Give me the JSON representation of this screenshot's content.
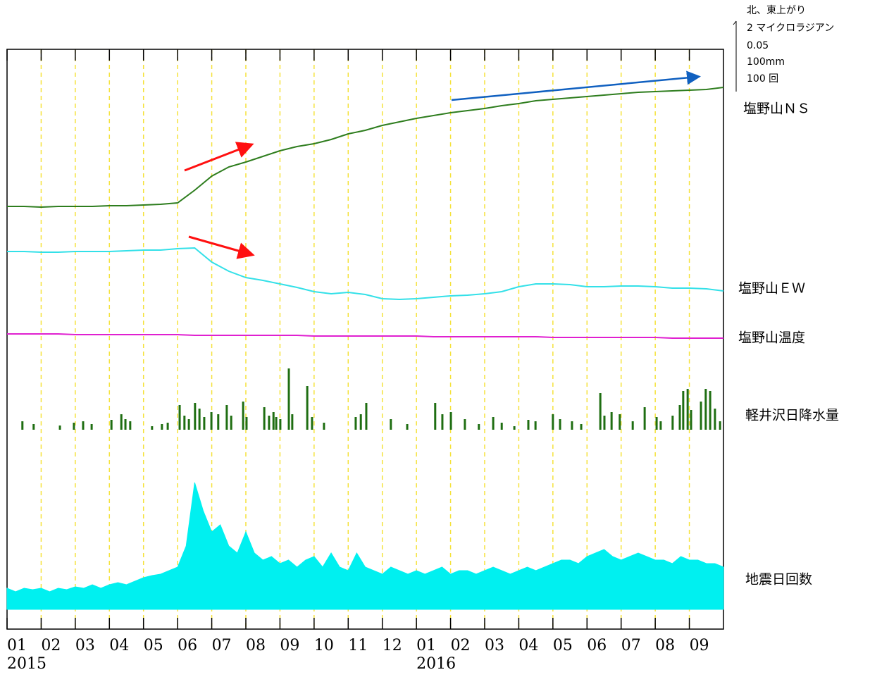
{
  "chart_data": {
    "type": "line",
    "xlim": [
      0,
      21
    ],
    "xticks": [
      {
        "value": 0,
        "label": "01"
      },
      {
        "value": 1,
        "label": "02"
      },
      {
        "value": 2,
        "label": "03"
      },
      {
        "value": 3,
        "label": "04"
      },
      {
        "value": 4,
        "label": "05"
      },
      {
        "value": 5,
        "label": "06"
      },
      {
        "value": 6,
        "label": "07"
      },
      {
        "value": 7,
        "label": "08"
      },
      {
        "value": 8,
        "label": "09"
      },
      {
        "value": 9,
        "label": "10"
      },
      {
        "value": 10,
        "label": "11"
      },
      {
        "value": 11,
        "label": "12"
      },
      {
        "value": 12,
        "label": "01"
      },
      {
        "value": 13,
        "label": "02"
      },
      {
        "value": 14,
        "label": "03"
      },
      {
        "value": 15,
        "label": "04"
      },
      {
        "value": 16,
        "label": "05"
      },
      {
        "value": 17,
        "label": "06"
      },
      {
        "value": 18,
        "label": "07"
      },
      {
        "value": 19,
        "label": "08"
      },
      {
        "value": 20,
        "label": "09"
      }
    ],
    "year_labels": [
      {
        "value": 0,
        "label": "2015"
      },
      {
        "value": 12,
        "label": "2016"
      }
    ],
    "grid": true,
    "scale": {
      "note": "北、東上がり",
      "items": [
        {
          "value": 2,
          "label": "2 マイクロラジアン"
        },
        {
          "value": 0.05,
          "label": "0.05"
        },
        {
          "value": 100,
          "label": "100mm"
        },
        {
          "value": 100,
          "label": "100 回"
        }
      ]
    },
    "x": [
      0,
      0.5,
      1,
      1.5,
      2,
      2.5,
      3,
      3.5,
      4,
      4.5,
      5,
      5.5,
      6,
      6.5,
      7,
      7.5,
      8,
      8.5,
      9,
      9.5,
      10,
      10.5,
      11,
      11.5,
      12,
      12.5,
      13,
      13.5,
      14,
      14.5,
      15,
      15.5,
      16,
      16.5,
      17,
      17.5,
      18,
      18.5,
      19,
      19.5,
      20,
      20.5,
      21
    ],
    "series": [
      {
        "name": "塩野山ＮＳ",
        "kind": "line",
        "color": "#2e7d1e",
        "values": [
          0,
          0,
          -0.02,
          0,
          0,
          0,
          0.02,
          0.02,
          0.04,
          0.06,
          0.1,
          0.46,
          0.86,
          1.12,
          1.26,
          1.42,
          1.58,
          1.7,
          1.78,
          1.9,
          2.06,
          2.16,
          2.3,
          2.4,
          2.5,
          2.58,
          2.66,
          2.72,
          2.78,
          2.86,
          2.92,
          3.0,
          3.04,
          3.08,
          3.12,
          3.16,
          3.2,
          3.24,
          3.26,
          3.28,
          3.3,
          3.32,
          3.38
        ]
      },
      {
        "name": "塩野山ＥＷ",
        "kind": "line",
        "color": "#33e0e8",
        "values": [
          0,
          0,
          -0.02,
          -0.02,
          0,
          0,
          0,
          0.02,
          0.04,
          0.04,
          0.08,
          0.1,
          -0.3,
          -0.56,
          -0.74,
          -0.82,
          -0.92,
          -1.02,
          -1.14,
          -1.2,
          -1.16,
          -1.22,
          -1.34,
          -1.36,
          -1.34,
          -1.3,
          -1.26,
          -1.24,
          -1.2,
          -1.14,
          -1.0,
          -0.92,
          -0.92,
          -0.94,
          -1.0,
          -1.0,
          -0.98,
          -0.98,
          -1.0,
          -1.04,
          -1.04,
          -1.06,
          -1.12
        ]
      },
      {
        "name": "塩野山温度",
        "kind": "line",
        "color": "#e020d0",
        "values": [
          0,
          0,
          0,
          0,
          -0.0005,
          -0.0005,
          -0.0005,
          -0.0005,
          -0.0005,
          -0.0005,
          -0.0005,
          -0.001,
          -0.001,
          -0.001,
          -0.001,
          -0.001,
          -0.001,
          -0.001,
          -0.0015,
          -0.0015,
          -0.0015,
          -0.0015,
          -0.0015,
          -0.0015,
          -0.0015,
          -0.002,
          -0.002,
          -0.002,
          -0.002,
          -0.002,
          -0.002,
          -0.002,
          -0.0025,
          -0.0025,
          -0.0025,
          -0.0025,
          -0.0025,
          -0.0025,
          -0.0025,
          -0.003,
          -0.003,
          -0.003,
          -0.003
        ]
      },
      {
        "name": "軽井沢日降水量",
        "kind": "bar",
        "color": "#1f6e12",
        "x": [
          0.45,
          0.78,
          1.55,
          1.96,
          2.23,
          2.48,
          3.06,
          3.35,
          3.47,
          3.61,
          4.25,
          4.54,
          4.71,
          5.06,
          5.2,
          5.33,
          5.51,
          5.64,
          5.78,
          5.99,
          6.19,
          6.44,
          6.57,
          6.92,
          7.02,
          7.54,
          7.68,
          7.81,
          7.89,
          8.01,
          8.26,
          8.36,
          8.8,
          8.94,
          9.29,
          10.22,
          10.37,
          10.53,
          11.25,
          11.73,
          12.55,
          12.76,
          13.01,
          13.42,
          13.83,
          14.25,
          14.5,
          14.87,
          15.28,
          15.49,
          16.0,
          16.21,
          16.56,
          16.83,
          17.39,
          17.51,
          17.72,
          17.96,
          18.34,
          18.69,
          19.04,
          19.16,
          19.51,
          19.72,
          19.82,
          19.95,
          20.05,
          20.34,
          20.48,
          20.61,
          20.75,
          20.9
        ],
        "values": [
          12,
          8,
          6,
          10,
          12,
          8,
          14,
          22,
          15,
          12,
          5,
          8,
          10,
          35,
          20,
          15,
          38,
          30,
          18,
          25,
          22,
          35,
          20,
          40,
          18,
          32,
          20,
          25,
          18,
          15,
          87,
          22,
          62,
          18,
          10,
          18,
          22,
          38,
          15,
          8,
          38,
          22,
          25,
          15,
          8,
          18,
          10,
          5,
          14,
          12,
          22,
          15,
          12,
          8,
          52,
          20,
          25,
          22,
          12,
          32,
          18,
          12,
          20,
          35,
          55,
          58,
          28,
          40,
          58,
          55,
          30,
          12
        ]
      },
      {
        "name": "地震日回数",
        "kind": "area",
        "color": "#00f0f0",
        "x": [
          0,
          0.25,
          0.5,
          0.75,
          1,
          1.25,
          1.5,
          1.75,
          2,
          2.25,
          2.5,
          2.75,
          3,
          3.25,
          3.5,
          3.75,
          4,
          4.25,
          4.5,
          4.75,
          5,
          5.25,
          5.5,
          5.75,
          6,
          6.25,
          6.5,
          6.75,
          7,
          7.25,
          7.5,
          7.75,
          8,
          8.25,
          8.5,
          8.75,
          9,
          9.25,
          9.5,
          9.75,
          10,
          10.25,
          10.5,
          10.75,
          11,
          11.25,
          11.5,
          11.75,
          12,
          12.25,
          12.5,
          12.75,
          13,
          13.25,
          13.5,
          13.75,
          14,
          14.25,
          14.5,
          14.75,
          15,
          15.25,
          15.5,
          15.75,
          16,
          16.25,
          16.5,
          16.75,
          17,
          17.25,
          17.5,
          17.75,
          18,
          18.25,
          18.5,
          18.75,
          19,
          19.25,
          19.5,
          19.75,
          20,
          20.25,
          20.5,
          20.75,
          21
        ],
        "values": [
          30,
          25,
          30,
          28,
          30,
          25,
          30,
          28,
          32,
          30,
          35,
          30,
          35,
          38,
          35,
          40,
          45,
          48,
          50,
          55,
          60,
          90,
          180,
          140,
          110,
          120,
          90,
          80,
          110,
          80,
          70,
          75,
          65,
          70,
          60,
          70,
          75,
          60,
          80,
          60,
          55,
          80,
          60,
          55,
          50,
          60,
          55,
          50,
          55,
          50,
          55,
          60,
          50,
          55,
          55,
          50,
          55,
          60,
          55,
          50,
          55,
          60,
          55,
          60,
          65,
          70,
          70,
          65,
          75,
          80,
          85,
          75,
          70,
          75,
          80,
          75,
          70,
          70,
          65,
          75,
          70,
          70,
          65,
          65,
          60
        ]
      }
    ]
  }
}
